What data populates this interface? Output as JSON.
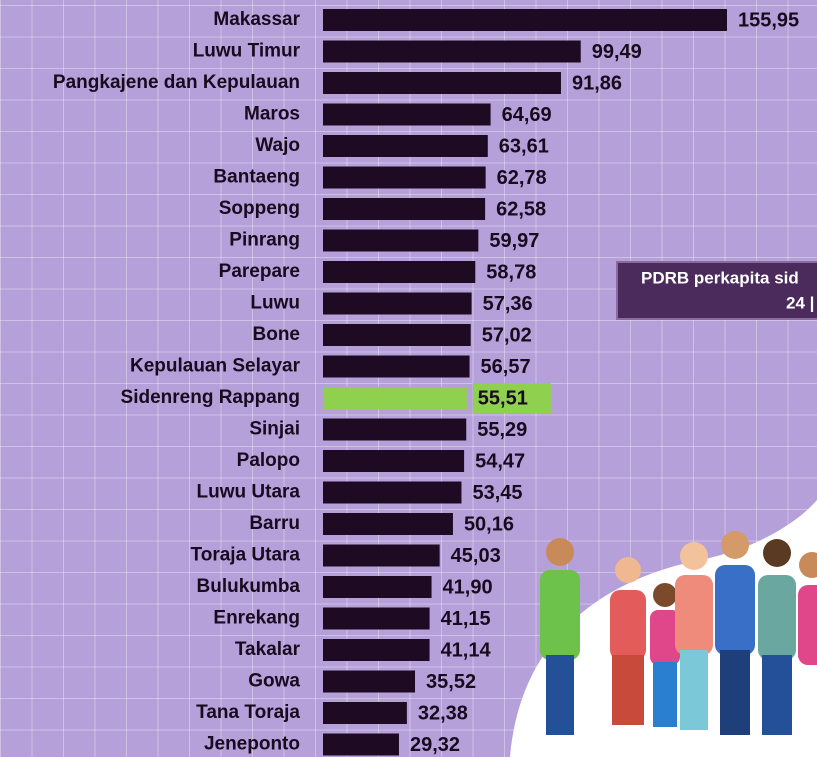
{
  "chart_data": {
    "type": "bar",
    "orientation": "horizontal",
    "categories": [
      "Makassar",
      "Luwu Timur",
      "Pangkajene dan Kepulauan",
      "Maros",
      "Wajo",
      "Bantaeng",
      "Soppeng",
      "Pinrang",
      "Parepare",
      "Luwu",
      "Bone",
      "Kepulauan Selayar",
      "Sidenreng Rappang",
      "Sinjai",
      "Palopo",
      "Luwu Utara",
      "Barru",
      "Toraja Utara",
      "Bulukumba",
      "Enrekang",
      "Takalar",
      "Gowa",
      "Tana Toraja",
      "Jeneponto"
    ],
    "values": [
      155.95,
      99.49,
      91.86,
      64.69,
      63.61,
      62.78,
      62.58,
      59.97,
      58.78,
      57.36,
      57.02,
      56.57,
      55.51,
      55.29,
      54.47,
      53.45,
      50.16,
      45.03,
      41.9,
      41.15,
      41.14,
      35.52,
      32.38,
      29.32
    ],
    "value_labels": [
      "155,95",
      "99,49",
      "91,86",
      "64,69",
      "63,61",
      "62,78",
      "62,58",
      "59,97",
      "58,78",
      "57,36",
      "57,02",
      "56,57",
      "55,51",
      "55,29",
      "54,47",
      "53,45",
      "50,16",
      "45,03",
      "41,90",
      "41,15",
      "41,14",
      "35,52",
      "32,38",
      "29,32"
    ],
    "colors": [
      "#1e0a22",
      "#1e0a22",
      "#1e0a22",
      "#1e0a22",
      "#1e0a22",
      "#1e0a22",
      "#1e0a22",
      "#1e0a22",
      "#1e0a22",
      "#1e0a22",
      "#1e0a22",
      "#1e0a22",
      "#8fd14f",
      "#1e0a22",
      "#1e0a22",
      "#1e0a22",
      "#1e0a22",
      "#1e0a22",
      "#1e0a22",
      "#1e0a22",
      "#1e0a22",
      "#1e0a22",
      "#1e0a22",
      "#1e0a22"
    ],
    "annotation": [
      "PDRB perkapita sid",
      "24 |"
    ]
  }
}
